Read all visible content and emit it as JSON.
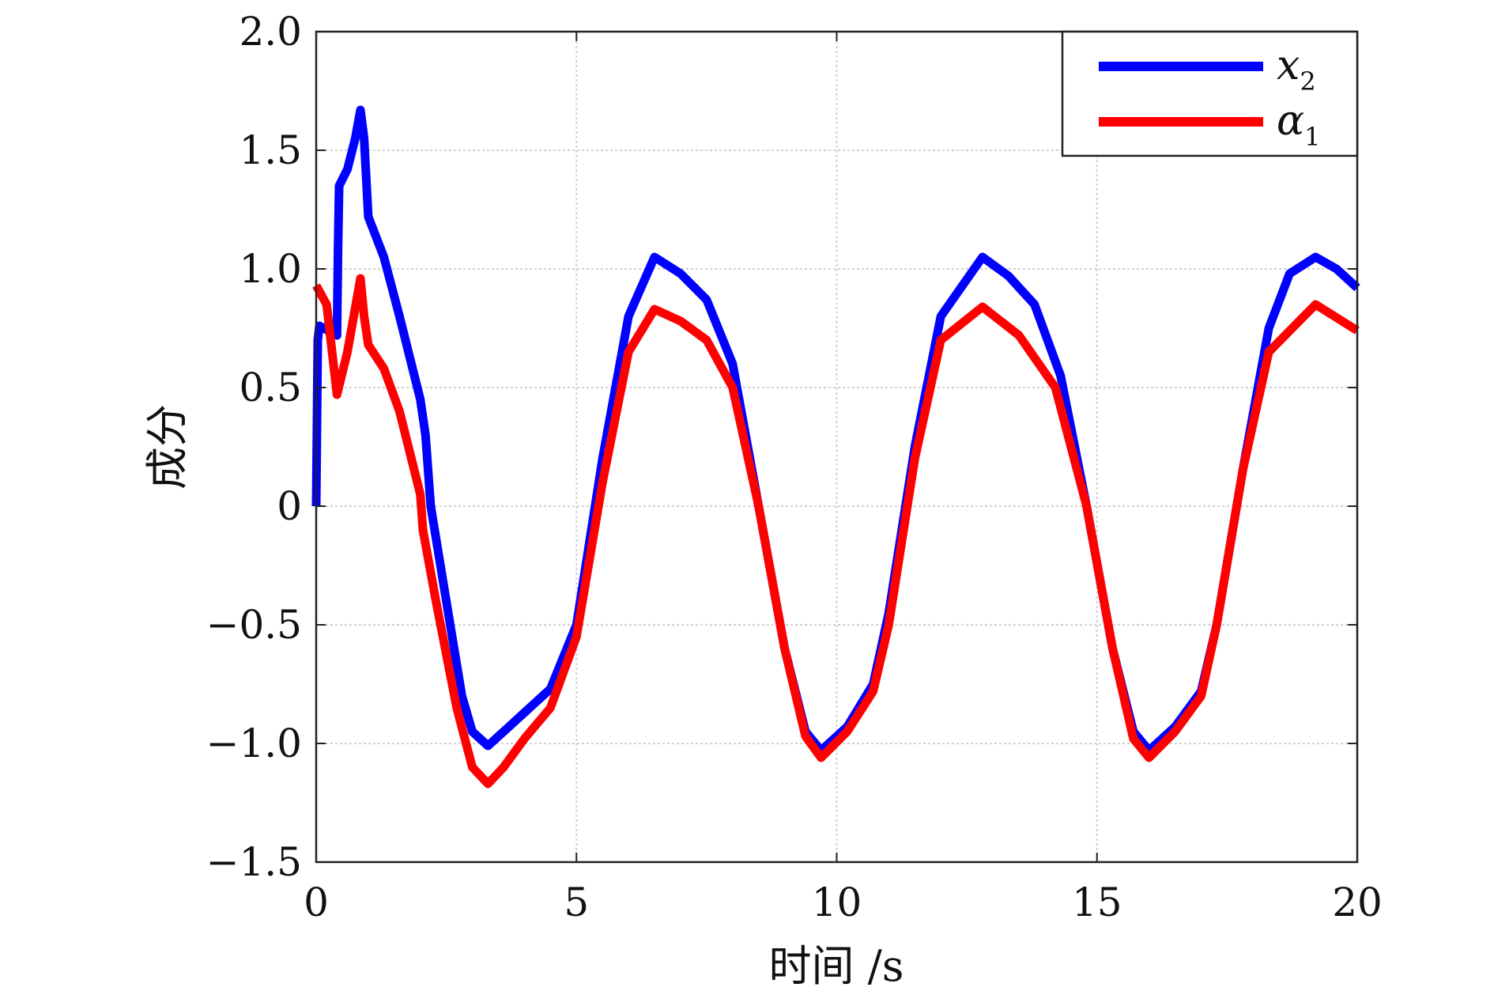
{
  "chart_data": {
    "type": "line",
    "title": "",
    "xlabel": "时间 /s",
    "ylabel": "成分",
    "xlim": [
      0,
      20
    ],
    "ylim": [
      -1.5,
      2.0
    ],
    "xticks": [
      0,
      5,
      10,
      15,
      20
    ],
    "xtick_labels": [
      "0",
      "5",
      "10",
      "15",
      "20"
    ],
    "yticks": [
      -1.5,
      -1.0,
      -0.5,
      0,
      0.5,
      1.0,
      1.5,
      2.0
    ],
    "ytick_labels": [
      "−1.5",
      "−1.0",
      "−0.5",
      "0",
      "0.5",
      "1.0",
      "1.5",
      "2.0"
    ],
    "grid": true,
    "legend_position": "top-right",
    "series": [
      {
        "name": "x",
        "subscript": "2",
        "color": "#0000ff",
        "x": [
          0,
          0.03,
          0.06,
          0.4,
          0.42,
          0.44,
          0.6,
          0.75,
          0.85,
          0.92,
          1.0,
          1.3,
          1.6,
          2.0,
          2.1,
          2.2,
          2.5,
          2.8,
          3.0,
          3.3,
          3.6,
          4.0,
          4.5,
          5.0,
          5.5,
          6.0,
          6.5,
          7.0,
          7.5,
          8.0,
          8.5,
          9.0,
          9.4,
          9.7,
          10.2,
          10.7,
          11.0,
          11.5,
          12.0,
          12.8,
          13.3,
          13.8,
          14.3,
          14.8,
          15.3,
          15.7,
          16.0,
          16.5,
          17.0,
          17.3,
          17.8,
          18.3,
          18.7,
          19.2,
          19.6,
          20.0
        ],
        "y": [
          0,
          0.7,
          0.76,
          0.72,
          1.1,
          1.35,
          1.42,
          1.55,
          1.67,
          1.55,
          1.22,
          1.05,
          0.8,
          0.45,
          0.3,
          0.0,
          -0.4,
          -0.8,
          -0.95,
          -1.01,
          -0.95,
          -0.87,
          -0.77,
          -0.5,
          0.2,
          0.8,
          1.05,
          0.98,
          0.87,
          0.6,
          0.0,
          -0.6,
          -0.95,
          -1.03,
          -0.93,
          -0.75,
          -0.45,
          0.25,
          0.8,
          1.05,
          0.97,
          0.85,
          0.55,
          0.0,
          -0.6,
          -0.95,
          -1.03,
          -0.93,
          -0.78,
          -0.5,
          0.15,
          0.75,
          0.98,
          1.05,
          1.0,
          0.92
        ]
      },
      {
        "name": "α",
        "subscript": "1",
        "color": "#ff0000",
        "x": [
          0,
          0.2,
          0.4,
          0.6,
          0.85,
          0.92,
          1.0,
          1.3,
          1.6,
          2.0,
          2.05,
          2.3,
          2.7,
          3.0,
          3.3,
          3.6,
          4.0,
          4.5,
          5.0,
          5.5,
          6.0,
          6.5,
          7.0,
          7.5,
          8.0,
          8.5,
          9.0,
          9.4,
          9.7,
          10.2,
          10.7,
          11.0,
          11.5,
          12.0,
          12.8,
          13.5,
          14.2,
          14.8,
          15.3,
          15.7,
          16.0,
          16.5,
          17.0,
          17.3,
          17.8,
          18.3,
          19.2,
          20.0
        ],
        "y": [
          0.93,
          0.85,
          0.47,
          0.65,
          0.96,
          0.8,
          0.68,
          0.58,
          0.4,
          0.05,
          -0.1,
          -0.4,
          -0.85,
          -1.1,
          -1.17,
          -1.1,
          -0.98,
          -0.85,
          -0.55,
          0.1,
          0.65,
          0.83,
          0.78,
          0.7,
          0.5,
          0.0,
          -0.6,
          -0.97,
          -1.06,
          -0.95,
          -0.78,
          -0.5,
          0.2,
          0.7,
          0.84,
          0.72,
          0.5,
          0.0,
          -0.6,
          -0.98,
          -1.06,
          -0.95,
          -0.8,
          -0.5,
          0.15,
          0.65,
          0.85,
          0.74
        ]
      }
    ]
  }
}
